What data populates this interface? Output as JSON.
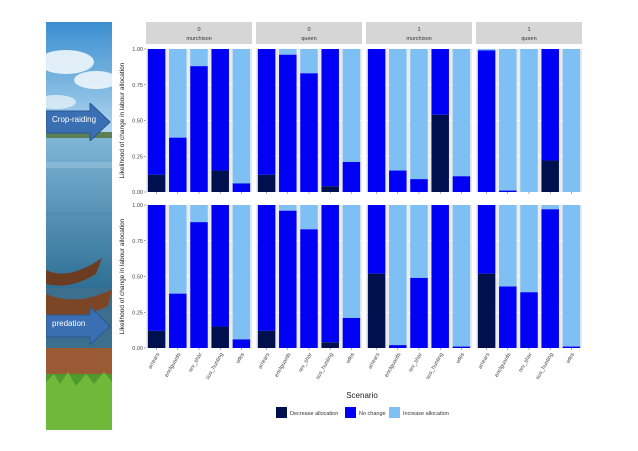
{
  "side_labels": {
    "top": "Crop-raiding",
    "bottom": "predation"
  },
  "chart_data": {
    "type": "bar",
    "stacked": true,
    "layout": "faceted 2 rows x 4 columns",
    "ylabel": "Likelihood of change in labour allocation",
    "xlabel": "Scenario",
    "ylim": [
      0,
      1
    ],
    "yticks": [
      "0.00",
      "0.25",
      "0.50",
      "0.75",
      "1.00"
    ],
    "facet_columns": [
      {
        "top": "0",
        "bottom": "murchison"
      },
      {
        "top": "0",
        "bottom": "queen"
      },
      {
        "top": "1",
        "bottom": "murchison"
      },
      {
        "top": "1",
        "bottom": "queen"
      }
    ],
    "categories": [
      "arrears",
      "enclguards",
      "rev_shar",
      "sus_hunting",
      "wfes"
    ],
    "series": [
      {
        "name": "Decrease allocation",
        "color": "#00104f"
      },
      {
        "name": "No change",
        "color": "#0000f5"
      },
      {
        "name": "Increase allocation",
        "color": "#7ec0f3"
      }
    ],
    "panels": [
      {
        "row": 0,
        "col": 0,
        "decrease": [
          0.12,
          0.0,
          0.0,
          0.15,
          0.0
        ],
        "nochange": [
          0.88,
          0.38,
          0.88,
          0.85,
          0.06
        ]
      },
      {
        "row": 0,
        "col": 1,
        "decrease": [
          0.12,
          0.0,
          0.0,
          0.04,
          0.0
        ],
        "nochange": [
          0.88,
          0.96,
          0.83,
          0.96,
          0.21
        ]
      },
      {
        "row": 0,
        "col": 2,
        "decrease": [
          0.0,
          0.0,
          0.0,
          0.54,
          0.0
        ],
        "nochange": [
          1.0,
          0.15,
          0.09,
          0.46,
          0.11
        ]
      },
      {
        "row": 0,
        "col": 3,
        "decrease": [
          0.0,
          0.0,
          0.0,
          0.22,
          0.0
        ],
        "nochange": [
          0.99,
          0.01,
          0.0,
          0.78,
          0.0
        ]
      },
      {
        "row": 1,
        "col": 0,
        "decrease": [
          0.12,
          0.0,
          0.0,
          0.15,
          0.0
        ],
        "nochange": [
          0.88,
          0.38,
          0.88,
          0.85,
          0.06
        ]
      },
      {
        "row": 1,
        "col": 1,
        "decrease": [
          0.12,
          0.0,
          0.0,
          0.04,
          0.0
        ],
        "nochange": [
          0.88,
          0.96,
          0.83,
          0.96,
          0.21
        ]
      },
      {
        "row": 1,
        "col": 2,
        "decrease": [
          0.52,
          0.0,
          0.0,
          0.0,
          0.0
        ],
        "nochange": [
          0.48,
          0.02,
          0.49,
          1.0,
          0.01
        ]
      },
      {
        "row": 1,
        "col": 3,
        "decrease": [
          0.52,
          0.0,
          0.0,
          0.0,
          0.0
        ],
        "nochange": [
          0.48,
          0.43,
          0.39,
          0.97,
          0.01
        ]
      }
    ]
  }
}
